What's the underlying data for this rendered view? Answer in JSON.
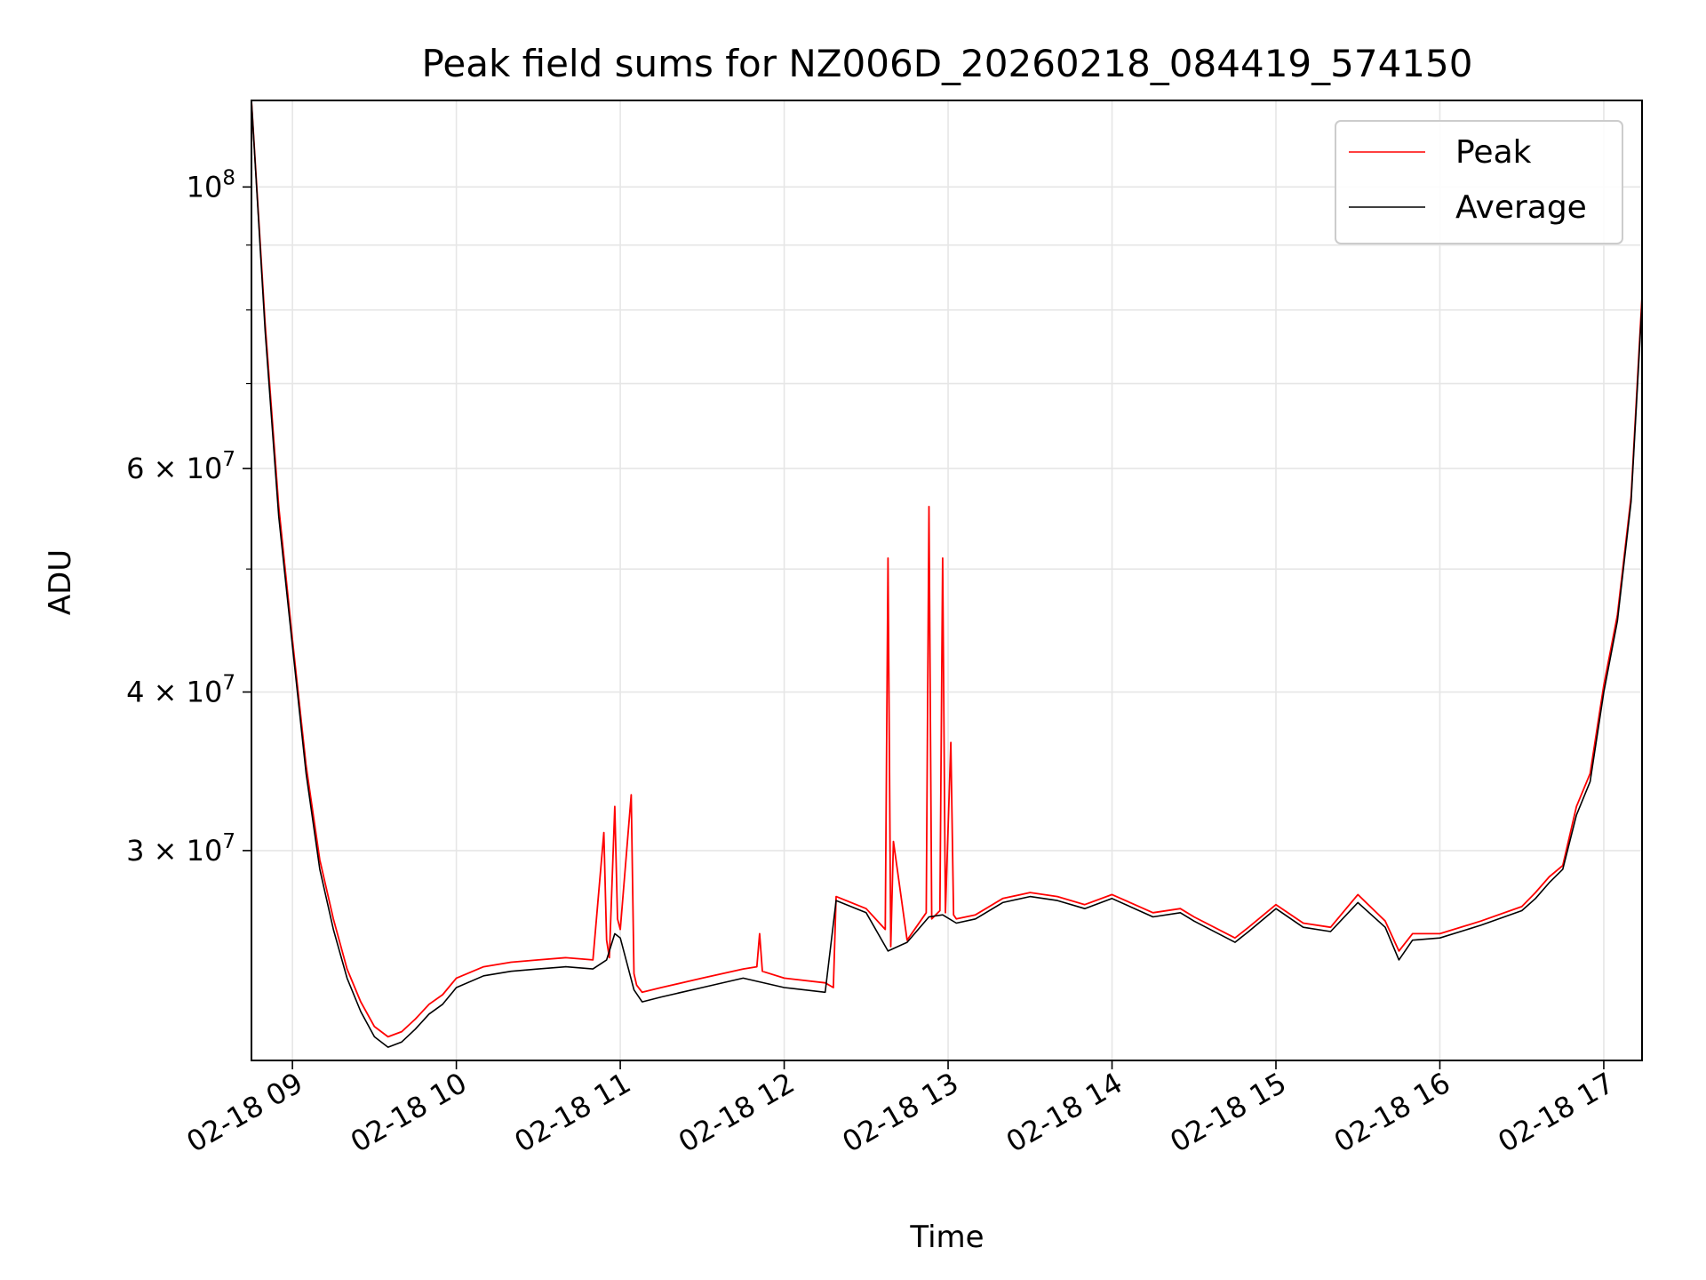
{
  "chart_data": {
    "type": "line",
    "title": "Peak field sums for NZ006D_20260218_084419_574150",
    "xlabel": "Time",
    "ylabel": "ADU",
    "yscale": "log",
    "grid": true,
    "legend_position": "top-right",
    "xlim": [
      "2026-02-18 08:45",
      "2026-02-18 17:14"
    ],
    "ylim": [
      20500000,
      117000000
    ],
    "x_ticks": [
      "02-18 09",
      "02-18 10",
      "02-18 11",
      "02-18 12",
      "02-18 13",
      "02-18 14",
      "02-18 15",
      "02-18 16",
      "02-18 17"
    ],
    "y_ticks_labeled": [
      {
        "value": 100000000,
        "base": "10",
        "exp": "8",
        "mant": ""
      },
      {
        "value": 60000000,
        "base": "10",
        "exp": "7",
        "mant": "6 × "
      },
      {
        "value": 40000000,
        "base": "10",
        "exp": "7",
        "mant": "4 × "
      },
      {
        "value": 30000000,
        "base": "10",
        "exp": "7",
        "mant": "3 × "
      }
    ],
    "y_ticks_minor": [
      50000000,
      70000000,
      80000000,
      90000000
    ],
    "x_ticks_time": [
      "2026-02-18 09:00",
      "2026-02-18 10:00",
      "2026-02-18 11:00",
      "2026-02-18 12:00",
      "2026-02-18 13:00",
      "2026-02-18 14:00",
      "2026-02-18 15:00",
      "2026-02-18 16:00",
      "2026-02-18 17:00"
    ],
    "series": [
      {
        "name": "Peak",
        "color": "#ff0000",
        "x": [
          "2026-02-18 08:45",
          "2026-02-18 08:50",
          "2026-02-18 08:55",
          "2026-02-18 09:00",
          "2026-02-18 09:05",
          "2026-02-18 09:10",
          "2026-02-18 09:15",
          "2026-02-18 09:20",
          "2026-02-18 09:25",
          "2026-02-18 09:30",
          "2026-02-18 09:35",
          "2026-02-18 09:40",
          "2026-02-18 09:45",
          "2026-02-18 09:50",
          "2026-02-18 09:55",
          "2026-02-18 10:00",
          "2026-02-18 10:10",
          "2026-02-18 10:20",
          "2026-02-18 10:30",
          "2026-02-18 10:40",
          "2026-02-18 10:50",
          "2026-02-18 10:54",
          "2026-02-18 10:55",
          "2026-02-18 10:56",
          "2026-02-18 10:58",
          "2026-02-18 10:59",
          "2026-02-18 11:00",
          "2026-02-18 11:04",
          "2026-02-18 11:05",
          "2026-02-18 11:06",
          "2026-02-18 11:08",
          "2026-02-18 11:15",
          "2026-02-18 11:30",
          "2026-02-18 11:45",
          "2026-02-18 11:50",
          "2026-02-18 11:51",
          "2026-02-18 11:52",
          "2026-02-18 12:00",
          "2026-02-18 12:15",
          "2026-02-18 12:18",
          "2026-02-18 12:19",
          "2026-02-18 12:30",
          "2026-02-18 12:37",
          "2026-02-18 12:38",
          "2026-02-18 12:39",
          "2026-02-18 12:40",
          "2026-02-18 12:45",
          "2026-02-18 12:52",
          "2026-02-18 12:53",
          "2026-02-18 12:54",
          "2026-02-18 12:57",
          "2026-02-18 12:58",
          "2026-02-18 12:59",
          "2026-02-18 13:01",
          "2026-02-18 13:02",
          "2026-02-18 13:03",
          "2026-02-18 13:10",
          "2026-02-18 13:20",
          "2026-02-18 13:30",
          "2026-02-18 13:40",
          "2026-02-18 13:50",
          "2026-02-18 14:00",
          "2026-02-18 14:15",
          "2026-02-18 14:25",
          "2026-02-18 14:30",
          "2026-02-18 14:45",
          "2026-02-18 14:50",
          "2026-02-18 15:00",
          "2026-02-18 15:10",
          "2026-02-18 15:20",
          "2026-02-18 15:30",
          "2026-02-18 15:40",
          "2026-02-18 15:45",
          "2026-02-18 15:50",
          "2026-02-18 16:00",
          "2026-02-18 16:15",
          "2026-02-18 16:30",
          "2026-02-18 16:35",
          "2026-02-18 16:40",
          "2026-02-18 16:45",
          "2026-02-18 16:50",
          "2026-02-18 16:55",
          "2026-02-18 17:00",
          "2026-02-18 17:05",
          "2026-02-18 17:10",
          "2026-02-18 17:14"
        ],
        "values": [
          117000000,
          78000000,
          56000000,
          44000000,
          35000000,
          29500000,
          26500000,
          24200000,
          22800000,
          21800000,
          21400000,
          21600000,
          22100000,
          22700000,
          23100000,
          23800000,
          24300000,
          24500000,
          24600000,
          24700000,
          24600000,
          31000000,
          25500000,
          24700000,
          32500000,
          26500000,
          26000000,
          33200000,
          24000000,
          23500000,
          23200000,
          23400000,
          23800000,
          24200000,
          24300000,
          25800000,
          24100000,
          23800000,
          23600000,
          23400000,
          27600000,
          27000000,
          26000000,
          51000000,
          25200000,
          30500000,
          25500000,
          26800000,
          56000000,
          26500000,
          26900000,
          51000000,
          26800000,
          36500000,
          26700000,
          26500000,
          26700000,
          27500000,
          27800000,
          27600000,
          27200000,
          27700000,
          26800000,
          27000000,
          26600000,
          25600000,
          26100000,
          27200000,
          26300000,
          26100000,
          27700000,
          26400000,
          25000000,
          25800000,
          25800000,
          26400000,
          27100000,
          27800000,
          28600000,
          29200000,
          32500000,
          34500000,
          40500000,
          46000000,
          57000000,
          82000000
        ]
      },
      {
        "name": "Average",
        "color": "#000000",
        "x": [
          "2026-02-18 08:45",
          "2026-02-18 08:50",
          "2026-02-18 08:55",
          "2026-02-18 09:00",
          "2026-02-18 09:05",
          "2026-02-18 09:10",
          "2026-02-18 09:15",
          "2026-02-18 09:20",
          "2026-02-18 09:25",
          "2026-02-18 09:30",
          "2026-02-18 09:35",
          "2026-02-18 09:40",
          "2026-02-18 09:45",
          "2026-02-18 09:50",
          "2026-02-18 09:55",
          "2026-02-18 10:00",
          "2026-02-18 10:10",
          "2026-02-18 10:20",
          "2026-02-18 10:30",
          "2026-02-18 10:40",
          "2026-02-18 10:50",
          "2026-02-18 10:55",
          "2026-02-18 10:58",
          "2026-02-18 11:00",
          "2026-02-18 11:05",
          "2026-02-18 11:08",
          "2026-02-18 11:15",
          "2026-02-18 11:30",
          "2026-02-18 11:45",
          "2026-02-18 12:00",
          "2026-02-18 12:15",
          "2026-02-18 12:19",
          "2026-02-18 12:30",
          "2026-02-18 12:38",
          "2026-02-18 12:45",
          "2026-02-18 12:53",
          "2026-02-18 12:58",
          "2026-02-18 13:03",
          "2026-02-18 13:10",
          "2026-02-18 13:20",
          "2026-02-18 13:30",
          "2026-02-18 13:40",
          "2026-02-18 13:50",
          "2026-02-18 14:00",
          "2026-02-18 14:15",
          "2026-02-18 14:25",
          "2026-02-18 14:30",
          "2026-02-18 14:45",
          "2026-02-18 14:50",
          "2026-02-18 15:00",
          "2026-02-18 15:10",
          "2026-02-18 15:20",
          "2026-02-18 15:30",
          "2026-02-18 15:40",
          "2026-02-18 15:45",
          "2026-02-18 15:50",
          "2026-02-18 16:00",
          "2026-02-18 16:15",
          "2026-02-18 16:30",
          "2026-02-18 16:35",
          "2026-02-18 16:40",
          "2026-02-18 16:45",
          "2026-02-18 16:50",
          "2026-02-18 16:55",
          "2026-02-18 17:00",
          "2026-02-18 17:05",
          "2026-02-18 17:10",
          "2026-02-18 17:14"
        ],
        "values": [
          117000000,
          77000000,
          55000000,
          43500000,
          34500000,
          29000000,
          26000000,
          23800000,
          22400000,
          21400000,
          21000000,
          21200000,
          21700000,
          22300000,
          22700000,
          23400000,
          23900000,
          24100000,
          24200000,
          24300000,
          24200000,
          24600000,
          25800000,
          25600000,
          23300000,
          22800000,
          23000000,
          23400000,
          23800000,
          23400000,
          23200000,
          27400000,
          26800000,
          25000000,
          25400000,
          26600000,
          26700000,
          26300000,
          26500000,
          27300000,
          27600000,
          27400000,
          27000000,
          27500000,
          26600000,
          26800000,
          26400000,
          25400000,
          25900000,
          27000000,
          26100000,
          25900000,
          27300000,
          26100000,
          24600000,
          25500000,
          25600000,
          26200000,
          26900000,
          27500000,
          28300000,
          29000000,
          32000000,
          34000000,
          40000000,
          45500000,
          56500000,
          81000000
        ]
      }
    ]
  }
}
